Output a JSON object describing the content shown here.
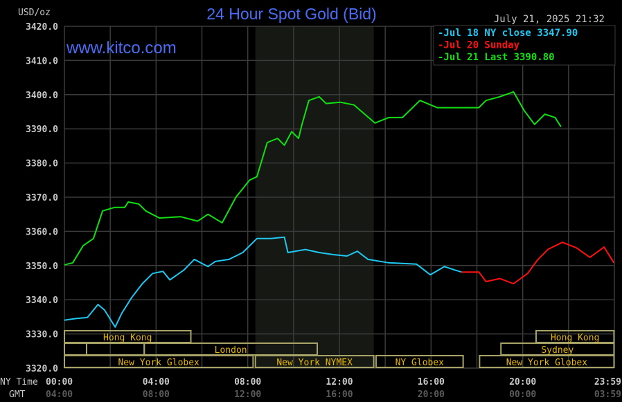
{
  "chart_data": {
    "type": "line",
    "title": "24 Hour Spot Gold (Bid)",
    "watermark": "www.kitco.com",
    "timestamp": "July 21, 2025 21:32",
    "ylabel": "USD/oz",
    "ylim": [
      3320,
      3420
    ],
    "yticks": [
      "3420.0",
      "3410.0",
      "3400.0",
      "3390.0",
      "3380.0",
      "3370.0",
      "3360.0",
      "3350.0",
      "3340.0",
      "3330.0",
      "3320.0"
    ],
    "xlim": [
      "00:00",
      "23:59"
    ],
    "x_axis_name": "NY Time",
    "x_axis2_name": "GMT",
    "xticks": [
      {
        "ny": "00:00",
        "gmt": "04:00"
      },
      {
        "ny": "04:00",
        "gmt": "08:00"
      },
      {
        "ny": "08:00",
        "gmt": "12:00"
      },
      {
        "ny": "12:00",
        "gmt": "16:00"
      },
      {
        "ny": "16:00",
        "gmt": "20:00"
      },
      {
        "ny": "20:00",
        "gmt": "00:00"
      },
      {
        "ny": "23:59",
        "gmt": "03:59"
      }
    ],
    "grid": true,
    "shaded_period": [
      "08:20",
      "13:30"
    ],
    "legend_position": "top-right",
    "colors": {
      "background": "#000000",
      "grid": "#3a3a3a",
      "title": "#4a6cf7",
      "axis_text": "#c8c8c8",
      "gmt_text": "#5a5a5a",
      "session_box": "#a8a468",
      "session_text": "#e8b800",
      "shade": "#161814"
    },
    "series": [
      {
        "name": "Jul 18 NY close 3347.90",
        "color": "#1ec8f0",
        "points": [
          [
            "00:00",
            3334
          ],
          [
            "00:30",
            3334.5
          ],
          [
            "01:00",
            3334.8
          ],
          [
            "01:28",
            3338.6
          ],
          [
            "01:45",
            3337
          ],
          [
            "02:13",
            3332
          ],
          [
            "02:30",
            3336
          ],
          [
            "02:56",
            3340.6
          ],
          [
            "03:24",
            3344.7
          ],
          [
            "03:51",
            3347.7
          ],
          [
            "04:18",
            3348.3
          ],
          [
            "04:36",
            3345.8
          ],
          [
            "05:13",
            3348.7
          ],
          [
            "05:40",
            3351.8
          ],
          [
            "06:16",
            3349.7
          ],
          [
            "06:35",
            3351.2
          ],
          [
            "07:11",
            3351.8
          ],
          [
            "07:47",
            3353.8
          ],
          [
            "08:24",
            3357.9
          ],
          [
            "09:00",
            3357.9
          ],
          [
            "09:36",
            3358.3
          ],
          [
            "09:45",
            3353.8
          ],
          [
            "10:31",
            3354.7
          ],
          [
            "11:07",
            3353.8
          ],
          [
            "11:44",
            3353.2
          ],
          [
            "12:20",
            3352.8
          ],
          [
            "12:47",
            3354.2
          ],
          [
            "13:15",
            3351.8
          ],
          [
            "14:09",
            3350.8
          ],
          [
            "15:22",
            3350.4
          ],
          [
            "15:58",
            3347.3
          ],
          [
            "16:35",
            3349.7
          ],
          [
            "17:02",
            3348.7
          ],
          [
            "17:20",
            3348.1
          ]
        ]
      },
      {
        "name": "Jul 20 Sunday",
        "color": "#ff1010",
        "points": [
          [
            "17:20",
            3348.1
          ],
          [
            "18:05",
            3348.1
          ],
          [
            "18:24",
            3345.3
          ],
          [
            "19:00",
            3346.2
          ],
          [
            "19:36",
            3344.7
          ],
          [
            "20:13",
            3347.7
          ],
          [
            "20:40",
            3351.8
          ],
          [
            "21:07",
            3354.8
          ],
          [
            "21:44",
            3356.8
          ],
          [
            "22:20",
            3355.2
          ],
          [
            "22:56",
            3352.4
          ],
          [
            "23:33",
            3355.4
          ],
          [
            "23:59",
            3350.8
          ]
        ]
      },
      {
        "name": "Jul 21 Last 3390.80",
        "color": "#10e010",
        "points": [
          [
            "00:00",
            3350.2
          ],
          [
            "00:22",
            3350.8
          ],
          [
            "00:49",
            3355.8
          ],
          [
            "01:16",
            3357.9
          ],
          [
            "01:40",
            3366
          ],
          [
            "02:11",
            3367
          ],
          [
            "02:38",
            3367
          ],
          [
            "02:47",
            3368.6
          ],
          [
            "03:15",
            3368
          ],
          [
            "03:33",
            3366
          ],
          [
            "04:09",
            3363.9
          ],
          [
            "05:04",
            3364.3
          ],
          [
            "05:49",
            3363
          ],
          [
            "06:16",
            3365
          ],
          [
            "06:53",
            3362.5
          ],
          [
            "07:29",
            3370
          ],
          [
            "08:05",
            3375
          ],
          [
            "08:24",
            3376
          ],
          [
            "08:51",
            3386
          ],
          [
            "09:18",
            3387.2
          ],
          [
            "09:36",
            3385.2
          ],
          [
            "09:55",
            3389.2
          ],
          [
            "10:13",
            3387.2
          ],
          [
            "10:22",
            3391.3
          ],
          [
            "10:40",
            3398.3
          ],
          [
            "11:07",
            3399.4
          ],
          [
            "11:25",
            3397.4
          ],
          [
            "12:02",
            3397.8
          ],
          [
            "12:38",
            3397
          ],
          [
            "13:33",
            3391.7
          ],
          [
            "14:09",
            3393.3
          ],
          [
            "14:45",
            3393.3
          ],
          [
            "15:31",
            3398.3
          ],
          [
            "16:16",
            3396.2
          ],
          [
            "17:11",
            3396.2
          ],
          [
            "18:05",
            3396.2
          ],
          [
            "18:24",
            3398.3
          ],
          [
            "19:00",
            3399.4
          ],
          [
            "19:36",
            3400.8
          ],
          [
            "20:04",
            3395.3
          ],
          [
            "20:31",
            3391.3
          ],
          [
            "20:58",
            3394.3
          ],
          [
            "21:25",
            3393.3
          ],
          [
            "21:40",
            3390.6
          ]
        ]
      }
    ],
    "sessions": [
      {
        "label": "Hong Kong",
        "row": 0,
        "start": "00:00",
        "end": "05:31"
      },
      {
        "label": "Hong Kong",
        "row": 0,
        "start": "20:35",
        "end": "23:59"
      },
      {
        "label": "",
        "row": 1,
        "start": "00:00",
        "end": "00:58"
      },
      {
        "label": "",
        "row": 1,
        "start": "00:58",
        "end": "03:29"
      },
      {
        "label": "London",
        "row": 1,
        "start": "03:29",
        "end": "11:02"
      },
      {
        "label": "Sydney",
        "row": 1,
        "start": "19:03",
        "end": "23:59"
      },
      {
        "label": "New York Globex",
        "row": 2,
        "start": "00:00",
        "end": "08:14"
      },
      {
        "label": "New York NYMEX",
        "row": 2,
        "start": "08:20",
        "end": "13:30"
      },
      {
        "label": "NY Globex",
        "row": 2,
        "start": "13:36",
        "end": "17:24"
      },
      {
        "label": "New York Globex",
        "row": 2,
        "start": "18:07",
        "end": "23:59"
      }
    ]
  }
}
